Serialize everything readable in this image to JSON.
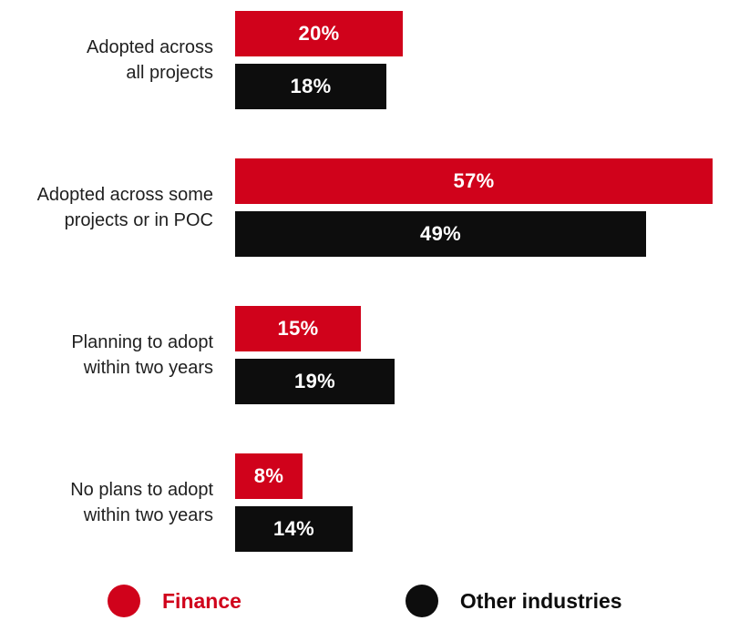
{
  "chart_data": {
    "type": "bar",
    "orientation": "horizontal",
    "title": "",
    "categories": [
      "Adopted across\nall projects",
      "Adopted across some\nprojects or in POC",
      "Planning to adopt\nwithin two years",
      "No plans to adopt\nwithin two years"
    ],
    "series": [
      {
        "name": "Finance",
        "color": "#d0021b",
        "values": [
          20,
          57,
          15,
          8
        ]
      },
      {
        "name": "Other industries",
        "color": "#0d0d0d",
        "values": [
          18,
          49,
          19,
          14
        ]
      }
    ],
    "value_suffix": "%",
    "xlim": [
      0,
      58
    ],
    "grid": false,
    "legend_position": "bottom",
    "value_labels_inside_bars": true
  },
  "colors": {
    "finance": "#d0021b",
    "other_industries": "#0d0d0d",
    "category_text": "#1f1f1f",
    "value_text": "#ffffff",
    "background": "#ffffff"
  }
}
